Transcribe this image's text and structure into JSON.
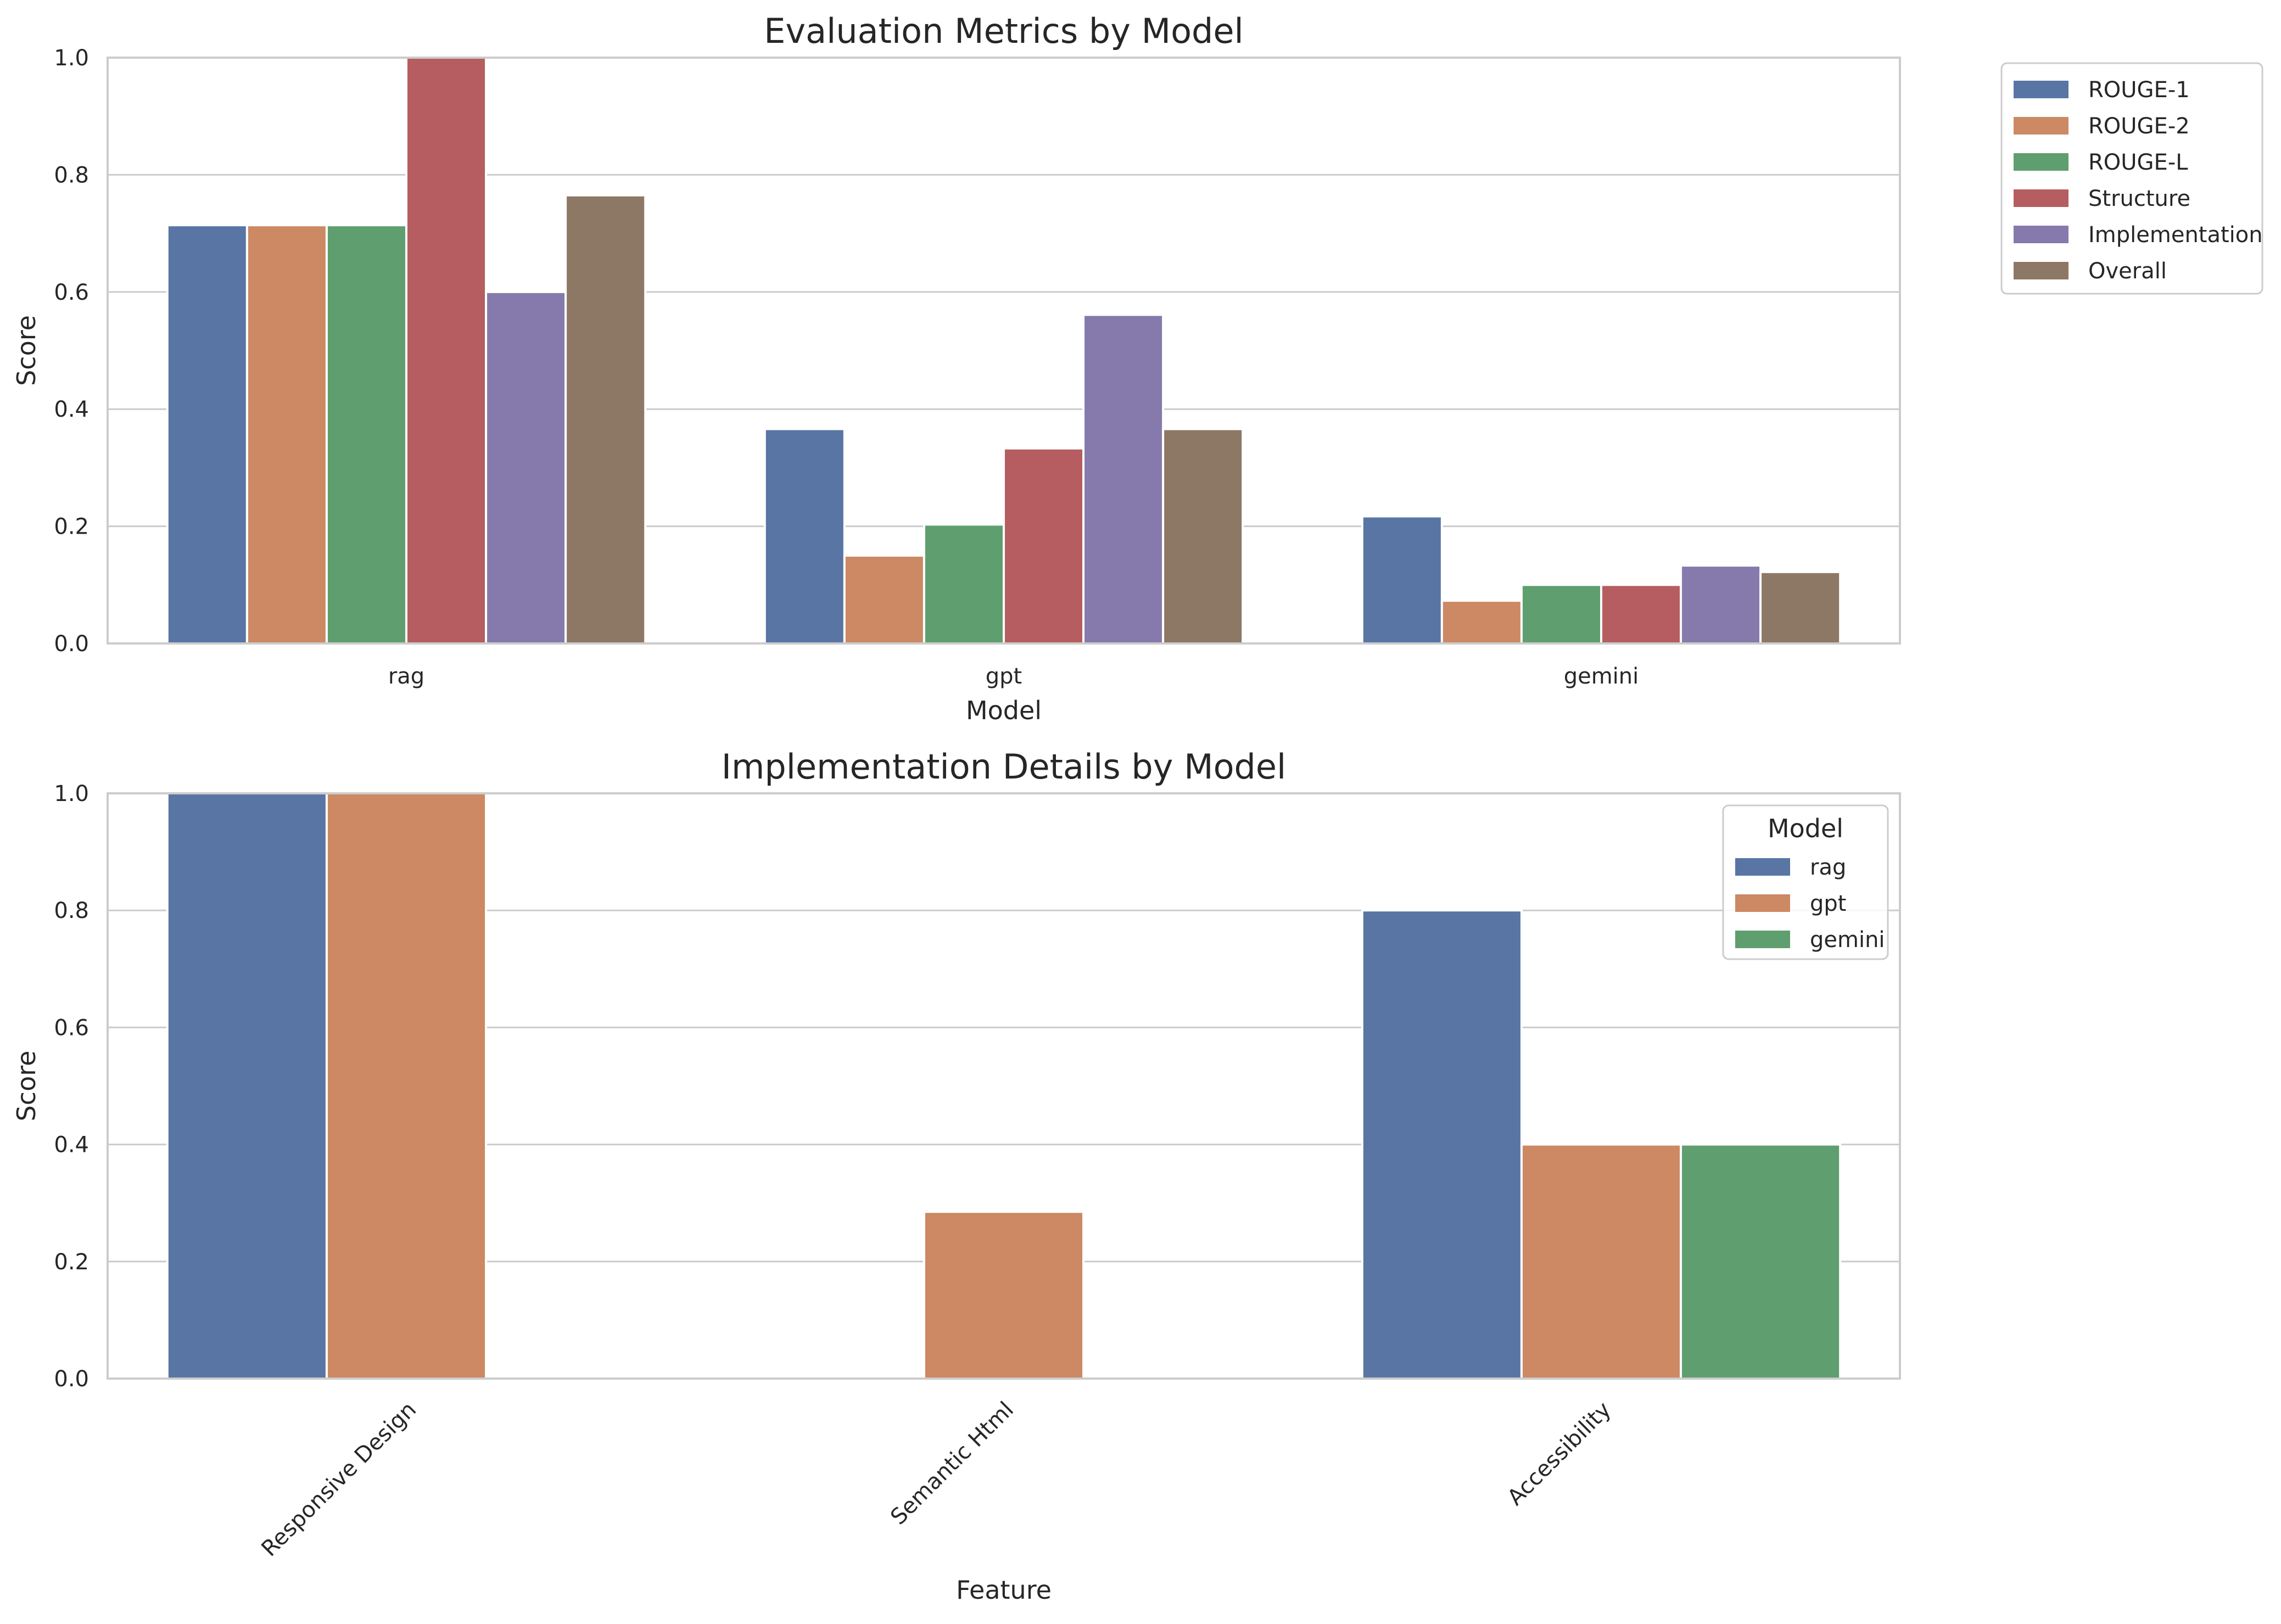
{
  "chart_data": [
    {
      "type": "bar",
      "title": "Evaluation Metrics by Model",
      "xlabel": "Model",
      "ylabel": "Score",
      "ylim": [
        0,
        1.0
      ],
      "yticks": [
        "0.0",
        "0.2",
        "0.4",
        "0.6",
        "0.8",
        "1.0"
      ],
      "categories": [
        "rag",
        "gpt",
        "gemini"
      ],
      "grid": true,
      "legend_placement": "outside-top-right",
      "legend_title": "",
      "series": [
        {
          "name": "ROUGE-1",
          "color": "#5875a4",
          "values": [
            0.714,
            0.366,
            0.217
          ]
        },
        {
          "name": "ROUGE-2",
          "color": "#cc8963",
          "values": [
            0.714,
            0.15,
            0.073
          ]
        },
        {
          "name": "ROUGE-L",
          "color": "#5f9e6e",
          "values": [
            0.714,
            0.203,
            0.1
          ]
        },
        {
          "name": "Structure",
          "color": "#b55d60",
          "values": [
            1.0,
            0.333,
            0.1
          ]
        },
        {
          "name": "Implementation",
          "color": "#857aab",
          "values": [
            0.6,
            0.561,
            0.133
          ]
        },
        {
          "name": "Overall",
          "color": "#8d7866",
          "values": [
            0.765,
            0.366,
            0.122
          ]
        }
      ]
    },
    {
      "type": "bar",
      "title": "Implementation Details by Model",
      "xlabel": "Feature",
      "ylabel": "Score",
      "ylim": [
        0,
        1.0
      ],
      "yticks": [
        "0.0",
        "0.2",
        "0.4",
        "0.6",
        "0.8",
        "1.0"
      ],
      "categories": [
        "Responsive Design",
        "Semantic Html",
        "Accessibility"
      ],
      "grid": true,
      "legend_placement": "top-right",
      "legend_title": "Model",
      "series": [
        {
          "name": "rag",
          "color": "#5875a4",
          "values": [
            1.0,
            0.0,
            0.8
          ]
        },
        {
          "name": "gpt",
          "color": "#cc8963",
          "values": [
            1.0,
            0.285,
            0.4
          ]
        },
        {
          "name": "gemini",
          "color": "#5f9e6e",
          "values": [
            0.0,
            0.0,
            0.4
          ]
        }
      ]
    }
  ]
}
